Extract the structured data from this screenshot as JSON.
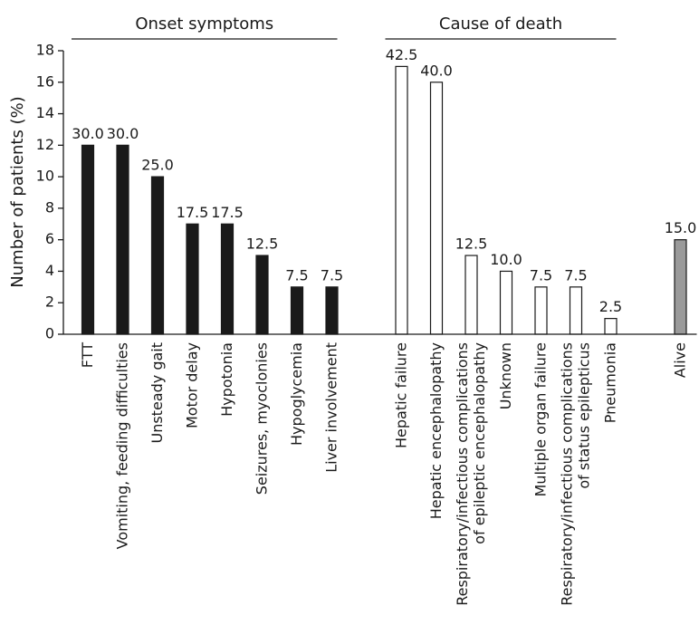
{
  "chart_data": {
    "type": "bar",
    "y_label": "Number of patients (%)",
    "ylim": [
      0,
      18
    ],
    "yticks": [
      0,
      2,
      4,
      6,
      8,
      10,
      12,
      14,
      16,
      18
    ],
    "groups": [
      {
        "name": "Onset symptoms",
        "color": "#1a1a1a",
        "categories": [
          "FTT",
          "Vomiting, feeding difficulties",
          "Unsteady gait",
          "Motor delay",
          "Hypotonia",
          "Seizures, myoclonies",
          "Hypoglycemia",
          "Liver involvement"
        ],
        "values": [
          12,
          12,
          10,
          7,
          7,
          5,
          3,
          3
        ],
        "value_labels": [
          "30.0",
          "30.0",
          "25.0",
          "17.5",
          "17.5",
          "12.5",
          "7.5",
          "7.5"
        ]
      },
      {
        "name": "Cause of death",
        "color": "#ffffff",
        "categories": [
          "Hepatic failure",
          "Hepatic encephalopathy",
          "Respiratory/infectious complications\nof epileptic encephalopathy",
          "Unknown",
          "Multiple organ failure",
          "Respiratory/infectious complications\nof status epilepticus",
          "Pneumonia"
        ],
        "values": [
          17,
          16,
          5,
          4,
          3,
          3,
          1
        ],
        "value_labels": [
          "42.5",
          "40.0",
          "12.5",
          "10.0",
          "7.5",
          "7.5",
          "2.5"
        ]
      },
      {
        "color": "#9a9a9a",
        "categories": [
          "Alive"
        ],
        "values": [
          6
        ],
        "value_labels": [
          "15.0"
        ]
      }
    ]
  }
}
